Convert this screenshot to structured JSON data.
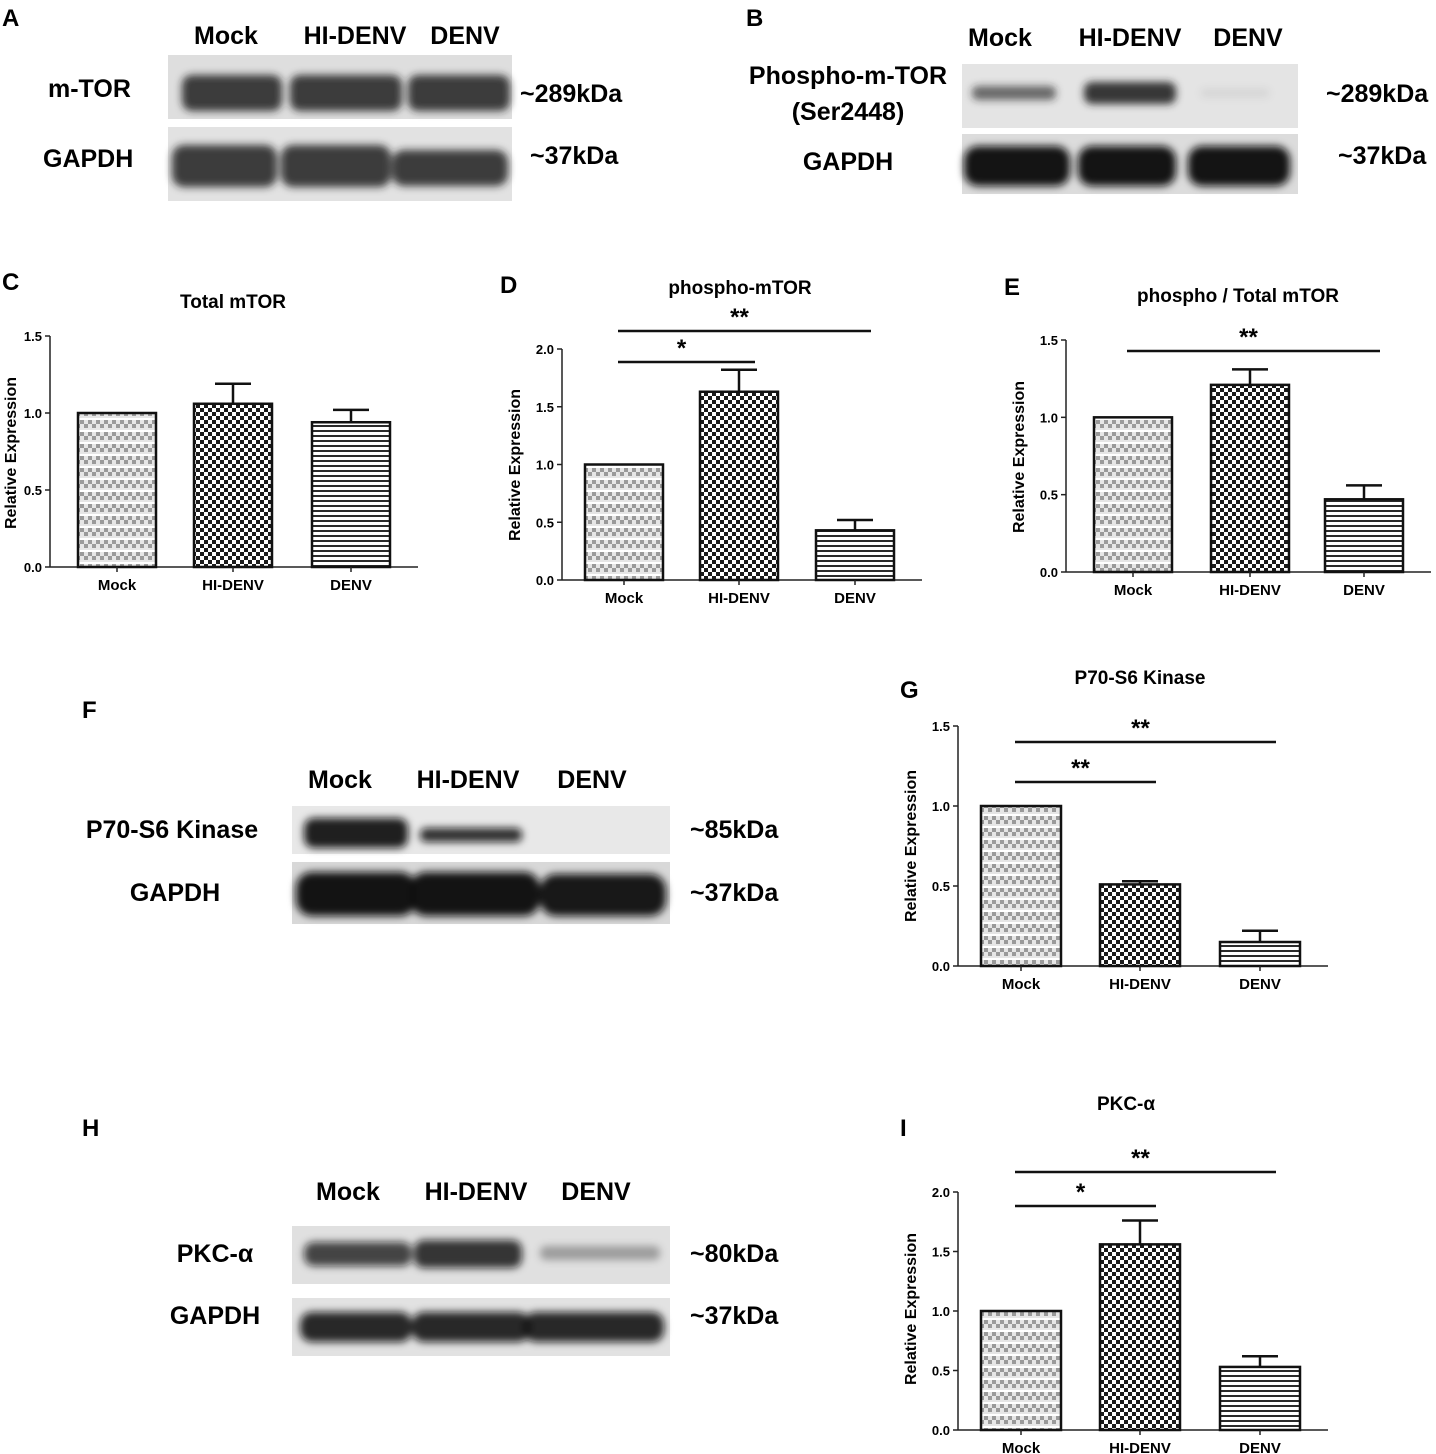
{
  "panels": {
    "A": {
      "letter": "A",
      "lanes": [
        "Mock",
        "HI-DENV",
        "DENV"
      ],
      "blots": [
        {
          "label": "m-TOR",
          "size": "~289kDa",
          "intensities": [
            0.85,
            0.85,
            0.85
          ]
        },
        {
          "label": "GAPDH",
          "size": "~37kDa",
          "intensities": [
            0.85,
            0.85,
            0.85
          ]
        }
      ]
    },
    "B": {
      "letter": "B",
      "lanes": [
        "Mock",
        "HI-DENV",
        "DENV"
      ],
      "blots": [
        {
          "label": "Phospho-m-TOR",
          "label2": "(Ser2448)",
          "size": "~289kDa",
          "intensities": [
            0.6,
            0.85,
            0.05
          ]
        },
        {
          "label": "GAPDH",
          "size": "~37kDa",
          "intensities": [
            1.0,
            1.0,
            1.0
          ]
        }
      ]
    },
    "F": {
      "letter": "F",
      "lanes": [
        "Mock",
        "HI-DENV",
        "DENV"
      ],
      "blots": [
        {
          "label": "P70-S6 Kinase",
          "size": "~85kDa",
          "intensities": [
            0.9,
            0.55,
            0.0
          ]
        },
        {
          "label": "GAPDH",
          "size": "~37kDa",
          "intensities": [
            1.0,
            1.0,
            1.0
          ]
        }
      ]
    },
    "H": {
      "letter": "H",
      "lanes": [
        "Mock",
        "HI-DENV",
        "DENV"
      ],
      "blots": [
        {
          "label": "PKC-α",
          "size": "~80kDa",
          "intensities": [
            0.75,
            0.8,
            0.25
          ]
        },
        {
          "label": "GAPDH",
          "size": "~37kDa",
          "intensities": [
            0.9,
            0.9,
            0.9
          ]
        }
      ]
    }
  },
  "chart_data": [
    {
      "panel": "C",
      "type": "bar",
      "title": "Total mTOR",
      "ylabel": "Relative Expression",
      "categories": [
        "Mock",
        "HI-DENV",
        "DENV"
      ],
      "values": [
        1.0,
        1.06,
        0.94
      ],
      "errors": [
        0,
        0.13,
        0.08
      ],
      "ylim": [
        0,
        1.5
      ],
      "yticks": [
        "0.0",
        "0.5",
        "1.0",
        "1.5"
      ],
      "patterns": [
        "hstripe",
        "checker",
        "hline"
      ],
      "significance": []
    },
    {
      "panel": "D",
      "type": "bar",
      "title": "phospho-mTOR",
      "ylabel": "Relative Expression",
      "categories": [
        "Mock",
        "HI-DENV",
        "DENV"
      ],
      "values": [
        1.0,
        1.63,
        0.43
      ],
      "errors": [
        0,
        0.19,
        0.09
      ],
      "ylim": [
        0,
        2.0
      ],
      "yticks": [
        "0.0",
        "0.5",
        "1.0",
        "1.5",
        "2.0"
      ],
      "patterns": [
        "hstripe",
        "checker",
        "hline"
      ],
      "significance": [
        {
          "from": 0,
          "to": 1,
          "label": "*"
        },
        {
          "from": 0,
          "to": 2,
          "label": "**"
        }
      ]
    },
    {
      "panel": "E",
      "type": "bar",
      "title": "phospho / Total mTOR",
      "ylabel": "Relative Expression",
      "categories": [
        "Mock",
        "HI-DENV",
        "DENV"
      ],
      "values": [
        1.0,
        1.21,
        0.47
      ],
      "errors": [
        0,
        0.1,
        0.09
      ],
      "ylim": [
        0,
        1.5
      ],
      "yticks": [
        "0.0",
        "0.5",
        "1.0",
        "1.5"
      ],
      "patterns": [
        "hstripe",
        "checker",
        "hline"
      ],
      "significance": [
        {
          "from": 0,
          "to": 2,
          "label": "**"
        }
      ]
    },
    {
      "panel": "G",
      "type": "bar",
      "title": "P70-S6 Kinase",
      "ylabel": "Relative Expression",
      "categories": [
        "Mock",
        "HI-DENV",
        "DENV"
      ],
      "values": [
        1.0,
        0.51,
        0.15
      ],
      "errors": [
        0,
        0.02,
        0.07
      ],
      "ylim": [
        0,
        1.5
      ],
      "yticks": [
        "0.0",
        "0.5",
        "1.0",
        "1.5"
      ],
      "patterns": [
        "hstripe",
        "checker",
        "hline"
      ],
      "significance": [
        {
          "from": 0,
          "to": 1,
          "label": "**"
        },
        {
          "from": 0,
          "to": 2,
          "label": "**"
        }
      ]
    },
    {
      "panel": "I",
      "type": "bar",
      "title": "PKC-α",
      "ylabel": "Relative Expression",
      "categories": [
        "Mock",
        "HI-DENV",
        "DENV"
      ],
      "values": [
        1.0,
        1.56,
        0.53
      ],
      "errors": [
        0,
        0.2,
        0.09
      ],
      "ylim": [
        0,
        2.0
      ],
      "yticks": [
        "0.0",
        "0.5",
        "1.0",
        "1.5",
        "2.0"
      ],
      "patterns": [
        "hstripe",
        "checker",
        "hline"
      ],
      "significance": [
        {
          "from": 0,
          "to": 1,
          "label": "*"
        },
        {
          "from": 0,
          "to": 2,
          "label": "**"
        }
      ]
    }
  ]
}
